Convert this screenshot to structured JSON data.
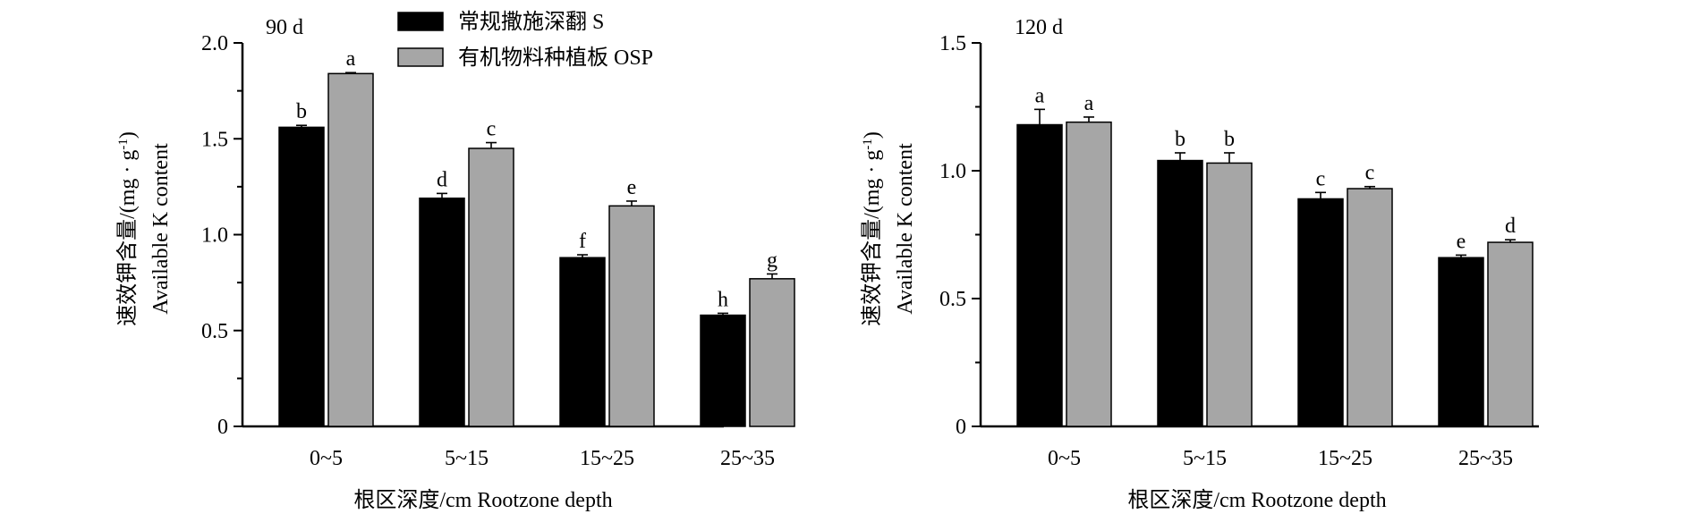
{
  "legend": {
    "items": [
      {
        "label": "常规撒施深翻 S",
        "color": "#000000"
      },
      {
        "label": "有机物料种植板 OSP",
        "color": "#a6a6a6"
      }
    ]
  },
  "chart_data": [
    {
      "type": "bar",
      "panel_label": "90 d",
      "categories": [
        "0~5",
        "5~15",
        "15~25",
        "25~35"
      ],
      "series": [
        {
          "name": "常规撒施深翻 S",
          "color": "#000000",
          "values": [
            1.56,
            1.19,
            0.88,
            0.58
          ],
          "errors": [
            0.01,
            0.025,
            0.015,
            0.01
          ],
          "letters": [
            "b",
            "d",
            "f",
            "h"
          ]
        },
        {
          "name": "有机物料种植板 OSP",
          "color": "#a6a6a6",
          "values": [
            1.84,
            1.45,
            1.15,
            0.77
          ],
          "errors": [
            0.005,
            0.03,
            0.025,
            0.025
          ],
          "letters": [
            "a",
            "c",
            "e",
            "g"
          ]
        }
      ],
      "ylim": [
        0,
        2.0
      ],
      "yticks": [
        0,
        0.5,
        1.0,
        1.5,
        2.0
      ],
      "ytick_labels": [
        "0",
        "0.5",
        "1.0",
        "1.5",
        "2.0"
      ],
      "ylabel_line1": "速效钾含量/(mg · g",
      "ylabel_sup": "-1",
      "ylabel_line1_end": ")",
      "ylabel_line2": "Available K content",
      "xlabel": "根区深度/cm Rootzone depth",
      "grid": false
    },
    {
      "type": "bar",
      "panel_label": "120 d",
      "categories": [
        "0~5",
        "5~15",
        "15~25",
        "25~35"
      ],
      "series": [
        {
          "name": "常规撒施深翻 S",
          "color": "#000000",
          "values": [
            1.18,
            1.04,
            0.89,
            0.66
          ],
          "errors": [
            0.06,
            0.03,
            0.025,
            0.01
          ],
          "letters": [
            "a",
            "b",
            "c",
            "e"
          ]
        },
        {
          "name": "有机物料种植板 OSP",
          "color": "#a6a6a6",
          "values": [
            1.19,
            1.03,
            0.93,
            0.72
          ],
          "errors": [
            0.02,
            0.04,
            0.008,
            0.01
          ],
          "letters": [
            "a",
            "b",
            "c",
            "d"
          ]
        }
      ],
      "ylim": [
        0,
        1.5
      ],
      "yticks": [
        0,
        0.5,
        1.0,
        1.5
      ],
      "ytick_labels": [
        "0",
        "0.5",
        "1.0",
        "1.5"
      ],
      "ylabel_line1": "速效钾含量/(mg · g",
      "ylabel_sup": "-1",
      "ylabel_line1_end": ")",
      "ylabel_line2": "Available K content",
      "xlabel": "根区深度/cm Rootzone depth",
      "grid": false
    }
  ]
}
